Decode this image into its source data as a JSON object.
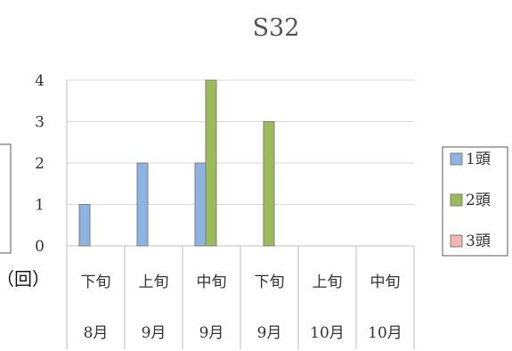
{
  "chart_data": {
    "type": "bar",
    "title": "S32",
    "ylabel": "（回）",
    "ylim": [
      0,
      4
    ],
    "yticks": [
      0,
      1,
      2,
      3,
      4
    ],
    "grid": true,
    "legend_position": "right",
    "categories": [
      {
        "top": "下旬",
        "bottom": "8月"
      },
      {
        "top": "上旬",
        "bottom": "9月"
      },
      {
        "top": "中旬",
        "bottom": "9月"
      },
      {
        "top": "下旬",
        "bottom": "9月"
      },
      {
        "top": "上旬",
        "bottom": "10月"
      },
      {
        "top": "中旬",
        "bottom": "10月"
      }
    ],
    "series": [
      {
        "name": "1頭",
        "color": "#8db3e2",
        "values": [
          1,
          2,
          2,
          0,
          0,
          0
        ]
      },
      {
        "name": "2頭",
        "color": "#9bbb59",
        "values": [
          0,
          0,
          4,
          3,
          0,
          0
        ]
      },
      {
        "name": "3頭",
        "color": "#f4b6b0",
        "values": [
          0,
          0,
          0,
          0,
          0,
          0
        ]
      }
    ]
  }
}
